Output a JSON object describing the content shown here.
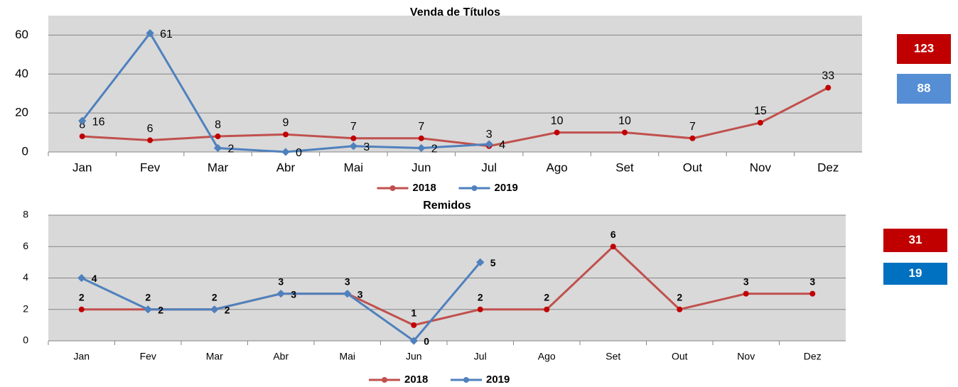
{
  "chart_data": [
    {
      "type": "line",
      "title": "Venda de Títulos",
      "categories": [
        "Jan",
        "Fev",
        "Mar",
        "Abr",
        "Mai",
        "Jun",
        "Jul",
        "Ago",
        "Set",
        "Out",
        "Nov",
        "Dez"
      ],
      "series": [
        {
          "name": "2018",
          "color": "#c0504d",
          "values": [
            8,
            6,
            8,
            9,
            7,
            7,
            3,
            10,
            10,
            7,
            15,
            33
          ]
        },
        {
          "name": "2019",
          "color": "#4f81bd",
          "values": [
            16,
            61,
            2,
            0,
            3,
            2,
            4,
            null,
            null,
            null,
            null,
            null
          ]
        }
      ],
      "ylim": [
        0,
        70
      ],
      "yticks": [
        0,
        20,
        40,
        60
      ],
      "grid": true,
      "legend": "bottom",
      "totals": [
        123,
        88
      ],
      "totals_colors": [
        "#c00000",
        "#558ed5"
      ]
    },
    {
      "type": "line",
      "title": "Remidos",
      "categories": [
        "Jan",
        "Fev",
        "Mar",
        "Abr",
        "Mai",
        "Jun",
        "Jul",
        "Ago",
        "Set",
        "Out",
        "Nov",
        "Dez"
      ],
      "series": [
        {
          "name": "2018",
          "color": "#c0504d",
          "values": [
            2,
            2,
            2,
            3,
            3,
            1,
            2,
            2,
            6,
            2,
            3,
            3
          ]
        },
        {
          "name": "2019",
          "color": "#4f81bd",
          "values": [
            4,
            2,
            2,
            3,
            3,
            0,
            5,
            null,
            null,
            null,
            null,
            null
          ]
        }
      ],
      "ylim": [
        0,
        8
      ],
      "yticks": [
        0,
        2,
        4,
        6,
        8
      ],
      "grid": true,
      "legend": "bottom",
      "totals": [
        31,
        19
      ],
      "totals_colors": [
        "#c00000",
        "#0070c0"
      ]
    }
  ]
}
